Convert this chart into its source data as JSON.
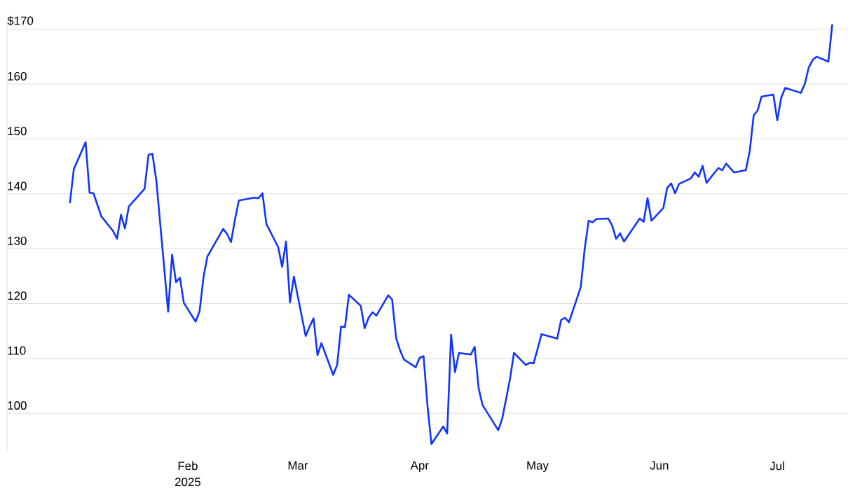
{
  "chart_data": {
    "type": "line",
    "color": "#1034ff",
    "grid": "y",
    "xlim": [
      "2024-12-17",
      "2025-07-19"
    ],
    "ylim": [
      93,
      171.5
    ],
    "xticks": [
      {
        "value": "2025-02-01",
        "label": "Feb 2025"
      },
      {
        "value": "2025-03-01",
        "label": "Mar"
      },
      {
        "value": "2025-04-01",
        "label": "Apr"
      },
      {
        "value": "2025-05-01",
        "label": "May"
      },
      {
        "value": "2025-06-01",
        "label": "Jun"
      },
      {
        "value": "2025-07-01",
        "label": "Jul"
      }
    ],
    "yticks": [
      100,
      110,
      120,
      130,
      140,
      150,
      160,
      {
        "value": 170,
        "label": "$170"
      }
    ],
    "x": [
      "2025-01-02",
      "2025-01-03",
      "2025-01-06",
      "2025-01-07",
      "2025-01-08",
      "2025-01-10",
      "2025-01-13",
      "2025-01-14",
      "2025-01-15",
      "2025-01-16",
      "2025-01-17",
      "2025-01-21",
      "2025-01-22",
      "2025-01-23",
      "2025-01-24",
      "2025-01-27",
      "2025-01-28",
      "2025-01-29",
      "2025-01-30",
      "2025-01-31",
      "2025-02-03",
      "2025-02-04",
      "2025-02-05",
      "2025-02-06",
      "2025-02-10",
      "2025-02-11",
      "2025-02-12",
      "2025-02-13",
      "2025-02-14",
      "2025-02-18",
      "2025-02-19",
      "2025-02-20",
      "2025-02-21",
      "2025-02-24",
      "2025-02-25",
      "2025-02-26",
      "2025-02-27",
      "2025-02-28",
      "2025-03-03",
      "2025-03-04",
      "2025-03-05",
      "2025-03-06",
      "2025-03-07",
      "2025-03-10",
      "2025-03-11",
      "2025-03-12",
      "2025-03-13",
      "2025-03-14",
      "2025-03-17",
      "2025-03-18",
      "2025-03-19",
      "2025-03-20",
      "2025-03-21",
      "2025-03-24",
      "2025-03-25",
      "2025-03-26",
      "2025-03-27",
      "2025-03-28",
      "2025-03-31",
      "2025-04-01",
      "2025-04-02",
      "2025-04-03",
      "2025-04-04",
      "2025-04-07",
      "2025-04-08",
      "2025-04-09",
      "2025-04-10",
      "2025-04-11",
      "2025-04-14",
      "2025-04-15",
      "2025-04-16",
      "2025-04-17",
      "2025-04-21",
      "2025-04-22",
      "2025-04-23",
      "2025-04-24",
      "2025-04-25",
      "2025-04-28",
      "2025-04-29",
      "2025-04-30",
      "2025-05-01",
      "2025-05-02",
      "2025-05-06",
      "2025-05-07",
      "2025-05-08",
      "2025-05-09",
      "2025-05-12",
      "2025-05-13",
      "2025-05-14",
      "2025-05-15",
      "2025-05-16",
      "2025-05-19",
      "2025-05-20",
      "2025-05-21",
      "2025-05-22",
      "2025-05-23",
      "2025-05-27",
      "2025-05-28",
      "2025-05-29",
      "2025-05-30",
      "2025-06-02",
      "2025-06-03",
      "2025-06-04",
      "2025-06-05",
      "2025-06-06",
      "2025-06-09",
      "2025-06-10",
      "2025-06-11",
      "2025-06-12",
      "2025-06-13",
      "2025-06-16",
      "2025-06-17",
      "2025-06-18",
      "2025-06-20",
      "2025-06-23",
      "2025-06-24",
      "2025-06-25",
      "2025-06-26",
      "2025-06-27",
      "2025-06-30",
      "2025-07-01",
      "2025-07-02",
      "2025-07-03",
      "2025-07-07",
      "2025-07-08",
      "2025-07-09",
      "2025-07-10",
      "2025-07-11",
      "2025-07-14",
      "2025-07-15"
    ],
    "values": [
      138.3,
      144.5,
      149.4,
      140.2,
      140.1,
      135.9,
      133.2,
      131.8,
      136.2,
      133.7,
      137.7,
      140.9,
      147.1,
      147.3,
      142.4,
      118.5,
      128.9,
      123.9,
      124.7,
      120.1,
      116.7,
      118.6,
      124.8,
      128.6,
      133.6,
      132.7,
      131.2,
      135.3,
      138.8,
      139.3,
      139.2,
      140.1,
      134.5,
      130.3,
      126.7,
      131.3,
      120.2,
      124.9,
      114.1,
      115.8,
      117.3,
      110.6,
      112.8,
      107.0,
      108.8,
      115.8,
      115.7,
      121.6,
      119.6,
      115.5,
      117.4,
      118.4,
      117.8,
      121.5,
      120.7,
      113.8,
      111.5,
      109.8,
      108.4,
      110.1,
      110.4,
      101.3,
      94.4,
      97.6,
      96.3,
      114.3,
      107.5,
      111.0,
      110.7,
      112.1,
      104.6,
      101.5,
      96.9,
      99.0,
      102.6,
      106.3,
      111.0,
      108.8,
      109.2,
      109.1,
      111.7,
      114.4,
      113.6,
      117.0,
      117.4,
      116.6,
      123.0,
      130.0,
      135.1,
      134.8,
      135.4,
      135.5,
      134.2,
      131.8,
      132.8,
      131.3,
      135.5,
      134.9,
      139.2,
      135.1,
      137.4,
      141.1,
      141.9,
      140.1,
      141.8,
      142.8,
      143.9,
      143.1,
      145.1,
      142.0,
      144.7,
      144.3,
      145.5,
      143.9,
      144.3,
      147.8,
      154.3,
      155.2,
      157.7,
      158.1,
      153.4,
      157.5,
      159.3,
      158.4,
      160.0,
      163.0,
      164.4,
      165.0,
      164.1,
      170.9
    ]
  }
}
